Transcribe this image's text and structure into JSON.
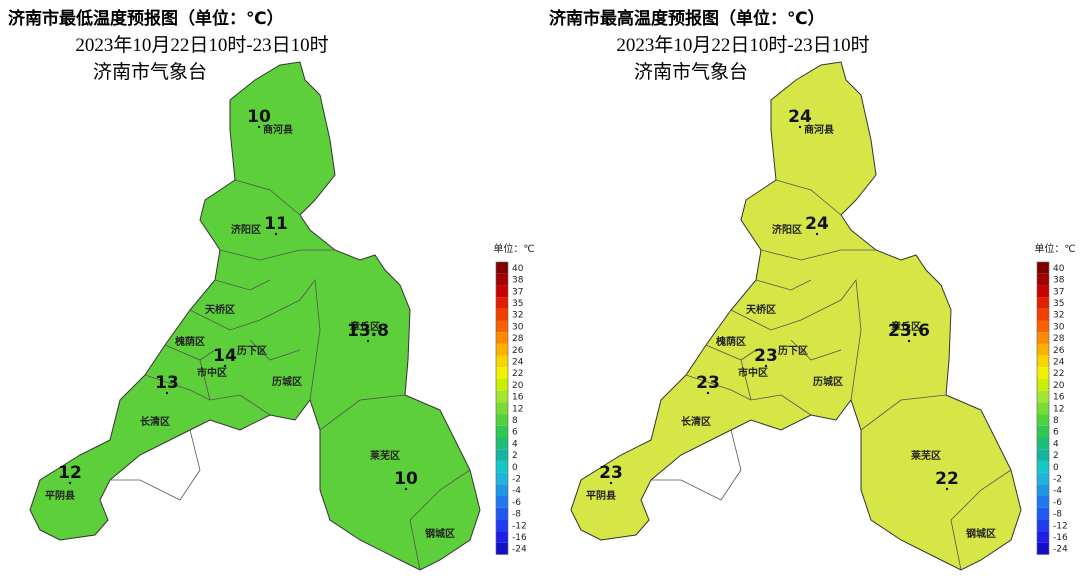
{
  "legend": {
    "unit": "单位：℃",
    "ticks": [
      40,
      38,
      37,
      35,
      32,
      30,
      28,
      26,
      24,
      22,
      20,
      16,
      12,
      8,
      6,
      4,
      2,
      0,
      -2,
      -4,
      -6,
      -8,
      -12,
      -16,
      -24
    ],
    "colors": [
      "#800000",
      "#a00000",
      "#c80000",
      "#e02000",
      "#f04000",
      "#f86000",
      "#fc8a00",
      "#fcb000",
      "#f8d400",
      "#f0f000",
      "#c8f000",
      "#a0e632",
      "#78dc32",
      "#50d23c",
      "#32c850",
      "#1ebe78",
      "#14b4a0",
      "#14c8c8",
      "#1eb4dc",
      "#1e96e6",
      "#1e78f0",
      "#1e5af0",
      "#1e3cf0",
      "#1e1ee6",
      "#1410c8"
    ]
  },
  "maps": [
    {
      "title": "济南市最低温度预报图（单位：℃）",
      "period": "2023年10月22日10时-23日10时",
      "issuer": "济南市气象台",
      "fill": "#5ccf3a",
      "districts": [
        "商河县",
        "济阳区",
        "天桥区",
        "槐荫区",
        "历下区",
        "市中区",
        "历城区",
        "长清区",
        "平阴县",
        "莱芜区",
        "钢城区",
        "章丘区"
      ],
      "values": [
        10,
        11,
        13.8,
        14,
        13,
        12,
        10
      ]
    },
    {
      "title": "济南市最高温度预报图（单位：℃）",
      "period": "2023年10月22日10时-23日10时",
      "issuer": "济南市气象台",
      "fill": "#d6e646",
      "districts": [
        "商河县",
        "济阳区",
        "天桥区",
        "槐荫区",
        "历下区",
        "市中区",
        "历城区",
        "长清区",
        "平阴县",
        "莱芜区",
        "钢城区",
        "章丘区"
      ],
      "values": [
        24,
        24,
        23.6,
        23,
        23,
        23,
        22
      ]
    }
  ]
}
